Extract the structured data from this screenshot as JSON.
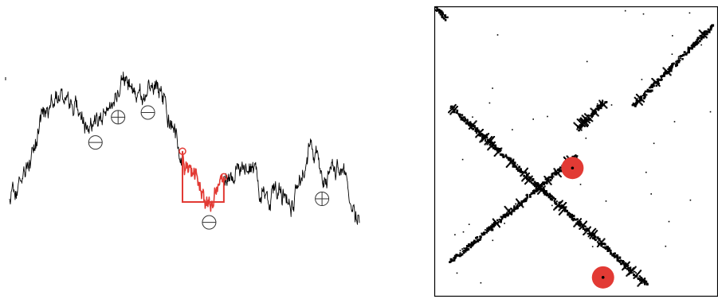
{
  "figure": {
    "left_panel": {
      "path_seed": 20240611,
      "path_steps": 880,
      "path_anchor_values": [
        0.2,
        0.4,
        0.7,
        0.85,
        0.76,
        0.68,
        0.74,
        0.92,
        0.84,
        0.93,
        0.58,
        0.34,
        0.18,
        0.33,
        0.45,
        0.26,
        0.28,
        0.19,
        0.55,
        0.32,
        0.38,
        0.08
      ],
      "markers": [
        {
          "symbol": "minus-circle",
          "at": 0.245
        },
        {
          "symbol": "plus-circle",
          "at": 0.31
        },
        {
          "symbol": "minus-circle",
          "at": 0.395
        },
        {
          "symbol": "minus-circle",
          "at": 0.57
        },
        {
          "symbol": "plus-circle",
          "at": 0.893
        }
      ],
      "highlight_window": {
        "from": 0.494,
        "to": 0.613
      },
      "highlight_color": "#e23a34",
      "path_color": "#000000"
    },
    "right_panel": {
      "diagonals": [
        {
          "name": "top-left-corner",
          "start": [
            0.0,
            0.0
          ],
          "end": [
            0.04,
            0.04
          ]
        },
        {
          "name": "main-anti-diagonal",
          "start": [
            0.05,
            0.34
          ],
          "end": [
            0.75,
            0.96
          ]
        },
        {
          "name": "upper-right-diag",
          "start": [
            0.7,
            0.34
          ],
          "end": [
            0.98,
            0.06
          ]
        },
        {
          "name": "lower-left-diag",
          "start": [
            0.05,
            0.88
          ],
          "end": [
            0.5,
            0.51
          ]
        },
        {
          "name": "small-mid-diag",
          "start": [
            0.5,
            0.42
          ],
          "end": [
            0.6,
            0.32
          ]
        }
      ],
      "highlight_points": [
        {
          "at": [
            0.487,
            0.557
          ]
        },
        {
          "at": [
            0.595,
            0.935
          ]
        }
      ],
      "highlight_color": "#e23a34",
      "dot_color": "#000000",
      "frame_color": "#000000"
    }
  }
}
